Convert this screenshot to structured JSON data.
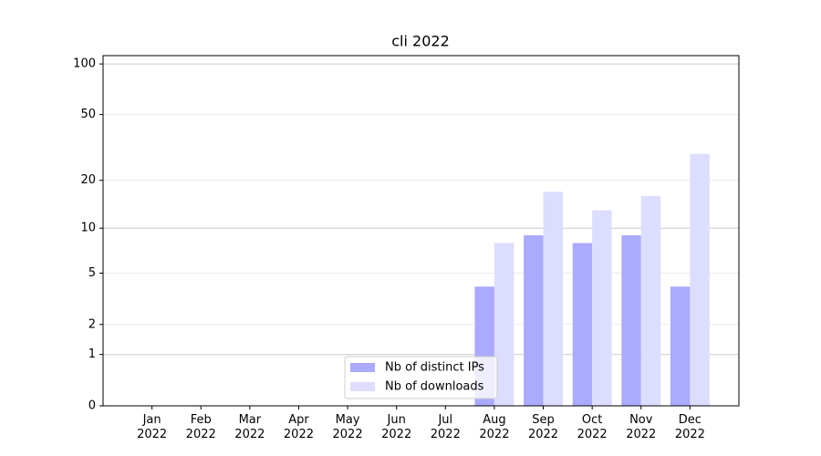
{
  "chart_data": {
    "type": "bar",
    "title": "cli 2022",
    "categories": [
      "Jan\n2022",
      "Feb\n2022",
      "Mar\n2022",
      "Apr\n2022",
      "May\n2022",
      "Jun\n2022",
      "Jul\n2022",
      "Aug\n2022",
      "Sep\n2022",
      "Oct\n2022",
      "Nov\n2022",
      "Dec\n2022"
    ],
    "series": [
      {
        "name": "Nb of distinct IPs",
        "color": "#aaaaff",
        "values": [
          0,
          0,
          0,
          0,
          0,
          0,
          0,
          4,
          9,
          8,
          9,
          4
        ]
      },
      {
        "name": "Nb of downloads",
        "color": "#ddddff",
        "values": [
          0,
          0,
          0,
          0,
          0,
          0,
          0,
          8,
          17,
          13,
          16,
          29
        ]
      }
    ],
    "yscale": "log1p",
    "ylim": [
      0,
      112
    ],
    "yticks": [
      0,
      1,
      2,
      5,
      10,
      20,
      50,
      100
    ],
    "grid": true,
    "legend": "lower center"
  }
}
